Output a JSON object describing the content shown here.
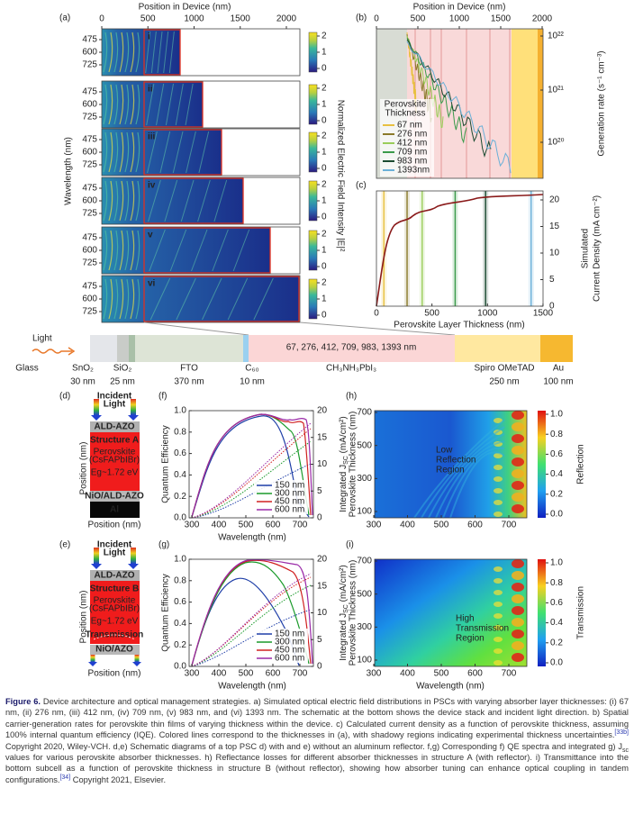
{
  "panel_a": {
    "label": "(a)",
    "x_title": "Position in Device (nm)",
    "x_ticks": [
      0,
      500,
      1000,
      1500,
      2000
    ],
    "y_title": "Wavelength (nm)",
    "y_ticks": [
      475,
      600,
      725
    ],
    "rows": [
      "i",
      "ii",
      "iii",
      "iv",
      "v",
      "vi"
    ],
    "colorbar_ticks": [
      2,
      1,
      0
    ],
    "colorbar_title": "Normalized Electric Field Intensity  |E|²"
  },
  "panel_b": {
    "label": "(b)",
    "x_title": "Position in Device (nm)",
    "x_ticks": [
      0,
      500,
      1000,
      1500,
      2000
    ],
    "y_title": "Generation rate (s⁻¹ cm⁻³)",
    "y_ticks": [
      "10²²",
      "10²¹",
      "10²⁰"
    ],
    "legend_title": [
      "Perovskite",
      "Thickness"
    ],
    "legend": [
      {
        "name": "67 nm",
        "color": "#e8c040"
      },
      {
        "name": "276 nm",
        "color": "#8a7a2a"
      },
      {
        "name": "412 nm",
        "color": "#9acd5a"
      },
      {
        "name": "709 nm",
        "color": "#3a9a4a"
      },
      {
        "name": "983 nm",
        "color": "#1a4a30"
      },
      {
        "name": "1393nm",
        "color": "#6ab0d8"
      }
    ]
  },
  "panel_c": {
    "label": "(c)",
    "x_title": "Perovskite Layer Thickness (nm)",
    "x_ticks": [
      0,
      500,
      1000,
      1500
    ],
    "y_title": [
      "Simulated",
      "Current Density (mA cm⁻²)"
    ],
    "y_ticks": [
      0,
      5,
      10,
      15,
      20
    ]
  },
  "stack": {
    "light": "Light",
    "thickness_list": "67, 276, 412, 709, 983, 1393  nm",
    "layers": [
      {
        "name": "Glass"
      },
      {
        "name": "SnO₂",
        "thickness": "30 nm"
      },
      {
        "name": "SiO₂",
        "thickness": "25 nm"
      },
      {
        "name": "FTO",
        "thickness": "370 nm"
      },
      {
        "name": "C₆₀",
        "thickness": "10 nm"
      },
      {
        "name": "CH₃NH₃PbI₃"
      },
      {
        "name": "Spiro OMeTAD",
        "thickness": "250 nm"
      },
      {
        "name": "Au",
        "thickness": "100 nm"
      }
    ]
  },
  "panel_d": {
    "label": "(d)",
    "incident": [
      "Incident",
      "Light"
    ],
    "top": "ALD-AZO",
    "structure": "Structure A",
    "absorber": [
      "Perovskite",
      "(CsFAPbIBr)"
    ],
    "gap": "Eg~1.72 eV",
    "bottom": "NiO/ALD-AZO",
    "reflector": "Al",
    "y_title": "Position (nm)",
    "x_title": "Position (nm)"
  },
  "panel_e": {
    "label": "(e)",
    "incident": [
      "Incident",
      "Light"
    ],
    "top": "ALD-AZO",
    "structure": "Structure B",
    "absorber": [
      "Perovskite",
      "(CsFAPbIBr)"
    ],
    "gap": "Eg~1.72 eV",
    "transmission": "Transmission",
    "bottom": "NiO/AZO",
    "y_title": "Position (nm)",
    "x_title": "Position (nm)"
  },
  "panel_f": {
    "label": "(f)",
    "y_title": "Quantum Efficiency",
    "y_ticks": [
      "0.0",
      "0.2",
      "0.4",
      "0.6",
      "0.8",
      "1.0"
    ],
    "y2_title": [
      "Integrated J",
      "SC",
      " (mA/cm²)"
    ],
    "y2_ticks": [
      0,
      5,
      10,
      15,
      20
    ],
    "x_title": "Wavelength (nm)",
    "x_ticks": [
      300,
      400,
      500,
      600,
      700
    ],
    "legend": [
      {
        "name": "150 nm",
        "color": "#1f3fa8"
      },
      {
        "name": "300 nm",
        "color": "#1a9a2a"
      },
      {
        "name": "450 nm",
        "color": "#d02020"
      },
      {
        "name": "600 nm",
        "color": "#9a2aa8"
      }
    ]
  },
  "panel_g": {
    "label": "(g)",
    "y_title": "Quantum Efficiency",
    "y_ticks": [
      "0.0",
      "0.2",
      "0.4",
      "0.6",
      "0.8",
      "1.0"
    ],
    "y2_title": [
      "Integrated J",
      "SC",
      " (mA/cm²)"
    ],
    "y2_ticks": [
      0,
      5,
      10,
      15,
      20
    ],
    "x_title": "Wavelength (nm)",
    "x_ticks": [
      300,
      400,
      500,
      600,
      700
    ],
    "legend": [
      {
        "name": "150 nm",
        "color": "#1f3fa8"
      },
      {
        "name": "300 nm",
        "color": "#1a9a2a"
      },
      {
        "name": "450 nm",
        "color": "#d02020"
      },
      {
        "name": "600 nm",
        "color": "#9a2aa8"
      }
    ]
  },
  "panel_h": {
    "label": "(h)",
    "y_title": "Perovskite Thickness (nm)",
    "y_ticks": [
      100,
      300,
      500,
      700
    ],
    "x_ticks": [
      300,
      400,
      500,
      600,
      700
    ],
    "colorbar_title": "Reflection",
    "colorbar_ticks": [
      "0.0",
      "0.2",
      "0.4",
      "0.6",
      "0.8",
      "1.0"
    ],
    "annotation": [
      "Low",
      "Reflection",
      "Region"
    ]
  },
  "panel_i": {
    "label": "(i)",
    "y_title": "Perovskite Thickness (nm)",
    "y_ticks": [
      100,
      300,
      500,
      700
    ],
    "x_ticks": [
      300,
      400,
      500,
      600,
      700
    ],
    "x_title": "Wavelength (nm)",
    "colorbar_title": "Transmission",
    "colorbar_ticks": [
      "0.0",
      "0.2",
      "0.4",
      "0.6",
      "0.8",
      "1.0"
    ],
    "annotation": [
      "High",
      "Transmission",
      "Region"
    ]
  },
  "caption": {
    "label": "Figure 6.",
    "parts": [
      " Device architecture and optical management strategies. a) Simulated optical electric field distributions in PSCs with varying absorber layer thicknesses: (i) 67 nm, (ii) 276 nm, (iii) 412 nm, (iv) 709 nm, (v) 983 nm, and (vi) 1393 nm. The schematic at the bottom shows the device stack and incident light direction. b) Spatial carrier-generation rates for perovskite thin films of varying thickness within the device. c) Calculated current density as a function of perovskite thickness, assuming 100% internal quantum efficiency (IQE). Colored lines correspond to the thicknesses in (a), with shadowy regions indicating experimental thickness uncertainties.",
      "[33b]",
      " Copyright 2020, Wiley-VCH. d,e) Schematic diagrams of a top PSC d) with and e) without an aluminum reflector. f,g) Corresponding f) QE spectra and integrated g) J",
      "sc",
      " values for various perovskite absorber thicknesses. h) Reflectance losses for different absorber thicknesses in structure A (with reflector). i) Transmittance into the bottom subcell as a function of perovskite thickness in structure B (without reflector), showing how absorber tuning can enhance optical coupling in tandem configurations.",
      "[34]",
      " Copyright 2021, Elsevier."
    ]
  }
}
